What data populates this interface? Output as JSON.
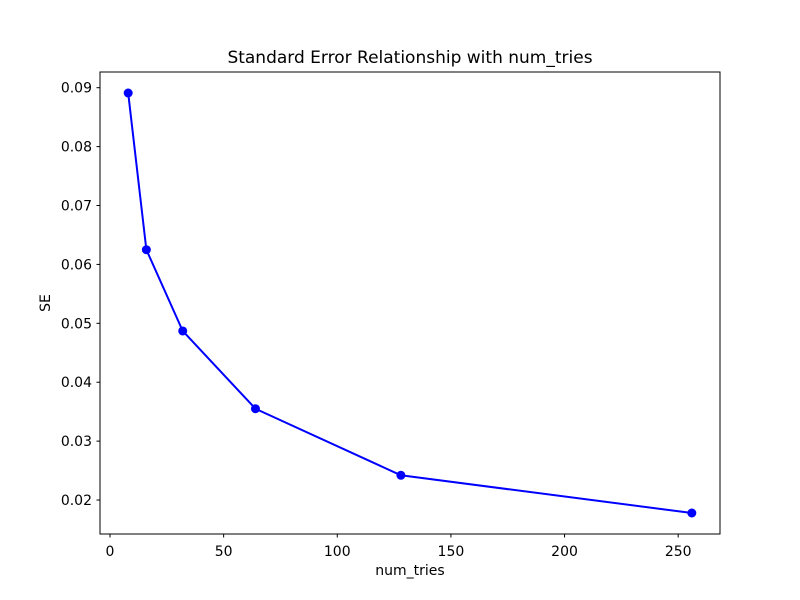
{
  "figure": {
    "background": "#ffffff",
    "text_color": "#000000"
  },
  "chart_data": {
    "type": "line",
    "title": "Standard Error Relationship with num_tries",
    "xlabel": "num_tries",
    "ylabel": "SE",
    "x": [
      8,
      16,
      32,
      64,
      128,
      256
    ],
    "y": [
      0.0891,
      0.0625,
      0.0487,
      0.0355,
      0.0242,
      0.0178
    ],
    "x_ticks": [
      0,
      50,
      100,
      150,
      200,
      250
    ],
    "x_tick_labels": [
      "0",
      "50",
      "100",
      "150",
      "200",
      "250"
    ],
    "y_ticks": [
      0.02,
      0.03,
      0.04,
      0.05,
      0.06,
      0.07,
      0.08,
      0.09
    ],
    "y_tick_labels": [
      "0.02",
      "0.03",
      "0.04",
      "0.05",
      "0.06",
      "0.07",
      "0.08",
      "0.09"
    ],
    "xlim": [
      -4.4,
      268.4
    ],
    "ylim": [
      0.014235,
      0.092665
    ],
    "line_color": "#0000ff",
    "marker": "circle",
    "marker_radius": 4.5,
    "line_width": 2,
    "grid": false,
    "legend_position": "none"
  }
}
